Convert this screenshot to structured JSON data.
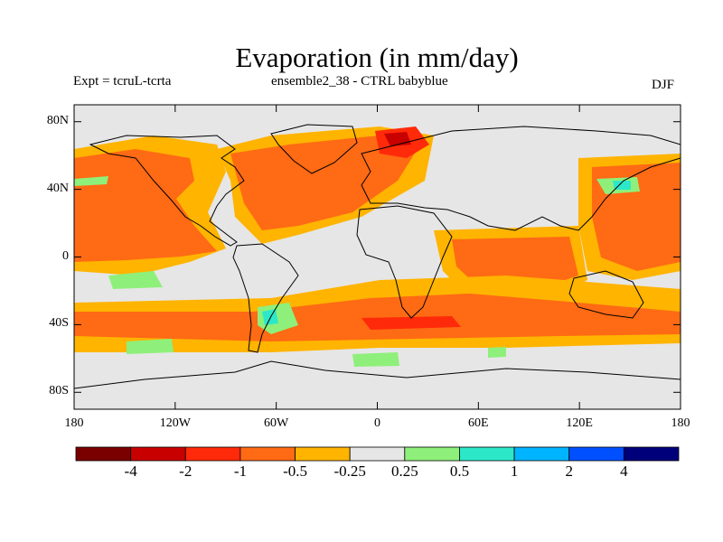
{
  "header": {
    "title": "Evaporation (in mm/day)",
    "expt": "Expt = tcruL-tcrta",
    "ensemble": "ensemble2_38 - CTRL babyblue",
    "season": "DJF"
  },
  "axes": {
    "lat_ticks": [
      "80N",
      "40N",
      "0",
      "40S",
      "80S"
    ],
    "lat_values": [
      80,
      40,
      0,
      -40,
      -80
    ],
    "lon_ticks": [
      "180",
      "120W",
      "60W",
      "0",
      "60E",
      "120E",
      "180"
    ],
    "lon_values": [
      -180,
      -120,
      -60,
      0,
      60,
      120,
      180
    ],
    "lat_range": [
      -90,
      90
    ],
    "lon_range": [
      -180,
      180
    ]
  },
  "colorbar": {
    "labels": [
      "-4",
      "-2",
      "-1",
      "-0.5",
      "-0.25",
      "0.25",
      "0.5",
      "1",
      "2",
      "4"
    ],
    "colors": [
      "#7a0000",
      "#c80000",
      "#ff2a0a",
      "#ff6a14",
      "#ffb400",
      "#e6e6e6",
      "#8ef07a",
      "#2ce8c8",
      "#00b4ff",
      "#0050ff",
      "#00007a"
    ]
  },
  "colors": {
    "neutral": "#e6e6e6",
    "orange": "#ff6a14",
    "light_orange": "#ffb400",
    "red": "#ff2a0a",
    "dark_red": "#c80000",
    "green": "#8ef07a",
    "teal": "#2ce8c8"
  }
}
